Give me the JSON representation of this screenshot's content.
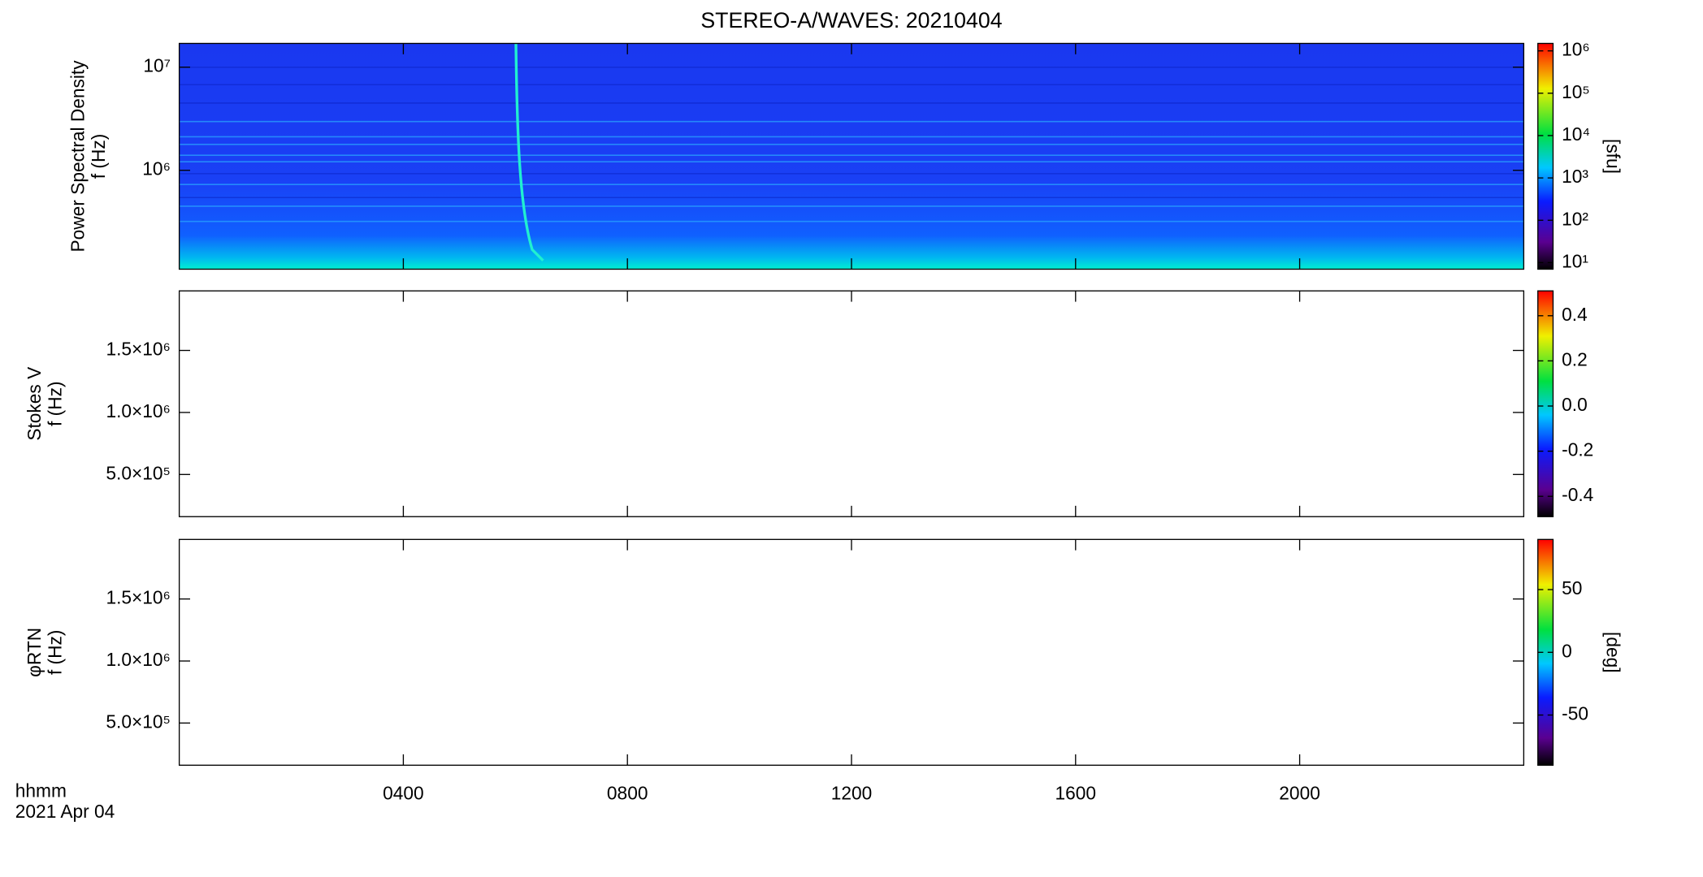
{
  "chart_data": [
    {
      "type": "spectrogram",
      "title": "STEREO-A/WAVES: 20210404",
      "ylabel": [
        "Power Spectral Density",
        "f (Hz)"
      ],
      "ylog": true,
      "ylim": [
        110000,
        17000000
      ],
      "yticks": [
        {
          "value": 1000000,
          "label": "10⁶"
        },
        {
          "value": 10000000,
          "label": "10⁷"
        }
      ],
      "xlim": [
        0,
        24
      ],
      "colorbar": {
        "log": true,
        "lim": [
          7,
          1500000
        ],
        "label": "[sfu]",
        "ticks": [
          {
            "value": 10,
            "label": "10¹"
          },
          {
            "value": 100,
            "label": "10²"
          },
          {
            "value": 1000,
            "label": "10³"
          },
          {
            "value": 10000,
            "label": "10⁴"
          },
          {
            "value": 100000,
            "label": "10⁵"
          },
          {
            "value": 1000000,
            "label": "10⁶"
          }
        ]
      }
    },
    {
      "type": "spectrogram",
      "ylabel": [
        "Stokes V",
        "f (Hz)"
      ],
      "ylog": false,
      "ylim": [
        160000,
        1980000
      ],
      "yticks": [
        {
          "value": 500000,
          "label": "5.0×10⁵"
        },
        {
          "value": 1000000,
          "label": "1.0×10⁶"
        },
        {
          "value": 1500000,
          "label": "1.5×10⁶"
        }
      ],
      "xlim": [
        0,
        24
      ],
      "colorbar": {
        "log": false,
        "lim": [
          -0.49,
          0.51
        ],
        "ticks": [
          -0.4,
          -0.2,
          {
            "value": 0,
            "label": "0.0"
          },
          0.2,
          0.4
        ]
      }
    },
    {
      "type": "spectrogram",
      "ylabel": [
        "φRTN",
        "f (Hz)"
      ],
      "ylog": false,
      "ylim": [
        160000,
        1980000
      ],
      "yticks": [
        {
          "value": 500000,
          "label": "5.0×10⁵"
        },
        {
          "value": 1000000,
          "label": "1.0×10⁶"
        },
        {
          "value": 1500000,
          "label": "1.5×10⁶"
        }
      ],
      "xlim": [
        0,
        24
      ],
      "xticks": [
        {
          "value": 4,
          "label": "0400"
        },
        {
          "value": 8,
          "label": "0800"
        },
        {
          "value": 12,
          "label": "1200"
        },
        {
          "value": 16,
          "label": "1600"
        },
        {
          "value": 20,
          "label": "2000"
        }
      ],
      "xlabel": "hhmm",
      "xdate": "2021 Apr 04",
      "colorbar": {
        "log": false,
        "lim": [
          -90,
          90
        ],
        "label": "[deg]",
        "ticks": [
          -50,
          0,
          50
        ]
      }
    }
  ]
}
